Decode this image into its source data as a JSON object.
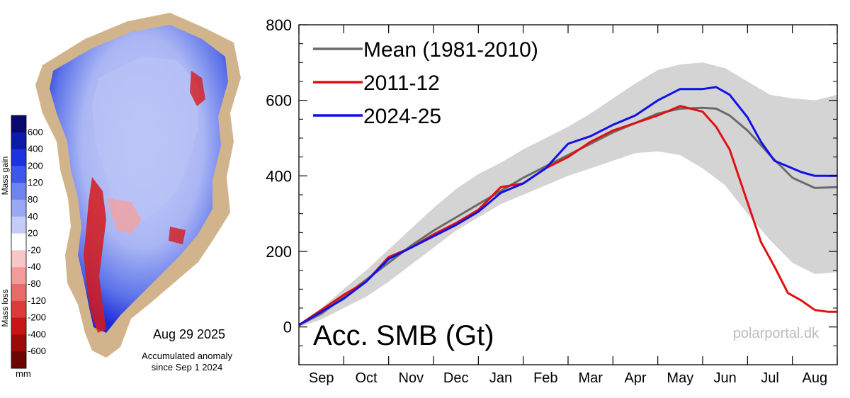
{
  "map": {
    "colorbar_labels": [
      "600",
      "400",
      "200",
      "120",
      "80",
      "40",
      "20",
      "-20",
      "-40",
      "-80",
      "-120",
      "-200",
      "-400",
      "-600"
    ],
    "colorbar_colors": [
      "#08086e",
      "#0b1aa8",
      "#1a32e0",
      "#3f57ec",
      "#6e84f0",
      "#9aa8f4",
      "#c6ccf8",
      "#ffffff",
      "#f7c7c7",
      "#f29b9b",
      "#e96a6a",
      "#df3a3a",
      "#c81414",
      "#9e0a0a",
      "#6e0505"
    ],
    "gain_label": "Mass gain",
    "loss_label": "Mass loss",
    "unit": "mm",
    "date": "Aug 29 2025",
    "subtitle_line1": "Accumulated anomaly",
    "subtitle_line2": "since Sep 1 2024",
    "land_color": "#d2b48c"
  },
  "chart_data": {
    "type": "line",
    "title": "Acc. SMB (Gt)",
    "source": "polarportal.dk",
    "ylim": [
      -100,
      800
    ],
    "yticks": [
      0,
      200,
      400,
      600,
      800
    ],
    "months": [
      "Sep",
      "Oct",
      "Nov",
      "Dec",
      "Jan",
      "Feb",
      "Mar",
      "Apr",
      "May",
      "Jun",
      "Jul",
      "Aug"
    ],
    "x_unit": "month index (0 = Sep 1)",
    "xlim": [
      0,
      12
    ],
    "grid": false,
    "legend_position": "top-left",
    "band": {
      "color": "#d4d4d4",
      "x": [
        0,
        0.5,
        1,
        1.5,
        2,
        2.5,
        3,
        3.5,
        4,
        4.5,
        5,
        5.5,
        6,
        6.5,
        7,
        7.5,
        8,
        8.5,
        9,
        9.5,
        10,
        10.5,
        11,
        11.5,
        12
      ],
      "upper": [
        8,
        50,
        100,
        150,
        205,
        260,
        315,
        365,
        405,
        435,
        470,
        500,
        530,
        565,
        605,
        645,
        680,
        695,
        700,
        685,
        650,
        615,
        605,
        600,
        615
      ],
      "lower": [
        0,
        20,
        50,
        80,
        120,
        165,
        210,
        255,
        290,
        325,
        350,
        375,
        400,
        420,
        440,
        460,
        465,
        455,
        420,
        375,
        300,
        230,
        170,
        140,
        145
      ]
    },
    "series": [
      {
        "name": "Mean (1981-2010)",
        "color": "#6b6b6b",
        "x": [
          0,
          0.5,
          1,
          1.5,
          2,
          2.5,
          3,
          3.5,
          4,
          4.5,
          5,
          5.5,
          6,
          6.5,
          7,
          7.5,
          8,
          8.5,
          9,
          9.3,
          9.6,
          10,
          10.5,
          11,
          11.5,
          12
        ],
        "y": [
          5,
          35,
          80,
          125,
          170,
          215,
          255,
          290,
          325,
          360,
          395,
          425,
          455,
          485,
          515,
          540,
          565,
          578,
          580,
          578,
          560,
          520,
          455,
          395,
          368,
          370
        ]
      },
      {
        "name": "2011-12",
        "color": "#e01010",
        "x": [
          0,
          0.5,
          1,
          1.5,
          2,
          2.5,
          3,
          3.5,
          4,
          4.5,
          5,
          5.5,
          6,
          6.5,
          7,
          7.5,
          8,
          8.5,
          9,
          9.3,
          9.6,
          10,
          10.3,
          10.6,
          10.9,
          11.2,
          11.5,
          11.8,
          12
        ],
        "y": [
          5,
          45,
          85,
          120,
          185,
          210,
          245,
          275,
          310,
          370,
          380,
          420,
          450,
          490,
          520,
          540,
          560,
          585,
          570,
          530,
          470,
          330,
          225,
          160,
          90,
          70,
          45,
          40,
          40
        ]
      },
      {
        "name": "2024-25",
        "color": "#1010e8",
        "x": [
          0,
          0.5,
          1,
          1.5,
          2,
          2.5,
          3,
          3.5,
          4,
          4.5,
          5,
          5.5,
          6,
          6.5,
          7,
          7.5,
          8,
          8.5,
          9,
          9.3,
          9.6,
          10,
          10.3,
          10.6,
          10.9,
          11.2,
          11.5,
          11.8,
          12
        ],
        "y": [
          5,
          40,
          75,
          120,
          180,
          210,
          240,
          270,
          305,
          355,
          380,
          420,
          485,
          505,
          535,
          560,
          600,
          630,
          630,
          635,
          615,
          555,
          490,
          440,
          425,
          410,
          400,
          400,
          400
        ]
      }
    ]
  }
}
